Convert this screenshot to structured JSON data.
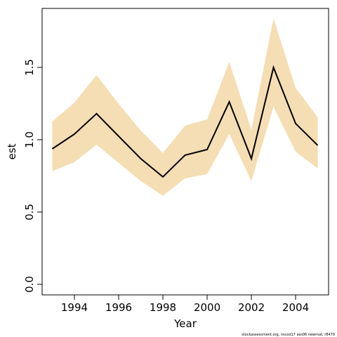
{
  "chart_data": {
    "type": "line",
    "x_label": "Year",
    "y_label": "est",
    "footnote": "stockassessment.org, nscod17 ass06 newmat, r8479",
    "x": [
      1993,
      1994,
      1995,
      1996,
      1997,
      1998,
      1999,
      2000,
      2001,
      2002,
      2003,
      2004,
      2005
    ],
    "series": [
      {
        "color": "#000000",
        "values": [
          0.937,
          1.039,
          1.18,
          1.024,
          0.869,
          0.743,
          0.893,
          0.932,
          1.262,
          0.869,
          1.5,
          1.112,
          0.961
        ]
      }
    ],
    "band": {
      "color": "#f5deb3",
      "upper": [
        1.126,
        1.257,
        1.447,
        1.248,
        1.063,
        0.908,
        1.097,
        1.141,
        1.539,
        1.068,
        1.84,
        1.359,
        1.155
      ],
      "lower": [
        0.782,
        0.845,
        0.966,
        0.84,
        0.714,
        0.612,
        0.733,
        0.762,
        1.039,
        0.714,
        1.228,
        0.917,
        0.801
      ]
    },
    "xlim": [
      1992.54,
      2005.49
    ],
    "xticks": [
      1994,
      1996,
      1998,
      2000,
      2002,
      2004
    ],
    "ylim": [
      -0.073,
      1.908
    ],
    "yticks": [
      {
        "value": 0,
        "label": "0.0"
      },
      {
        "value": 0.5,
        "label": "0.5"
      },
      {
        "value": 1,
        "label": "1.0"
      },
      {
        "value": 1.5,
        "label": "1.5"
      }
    ]
  }
}
